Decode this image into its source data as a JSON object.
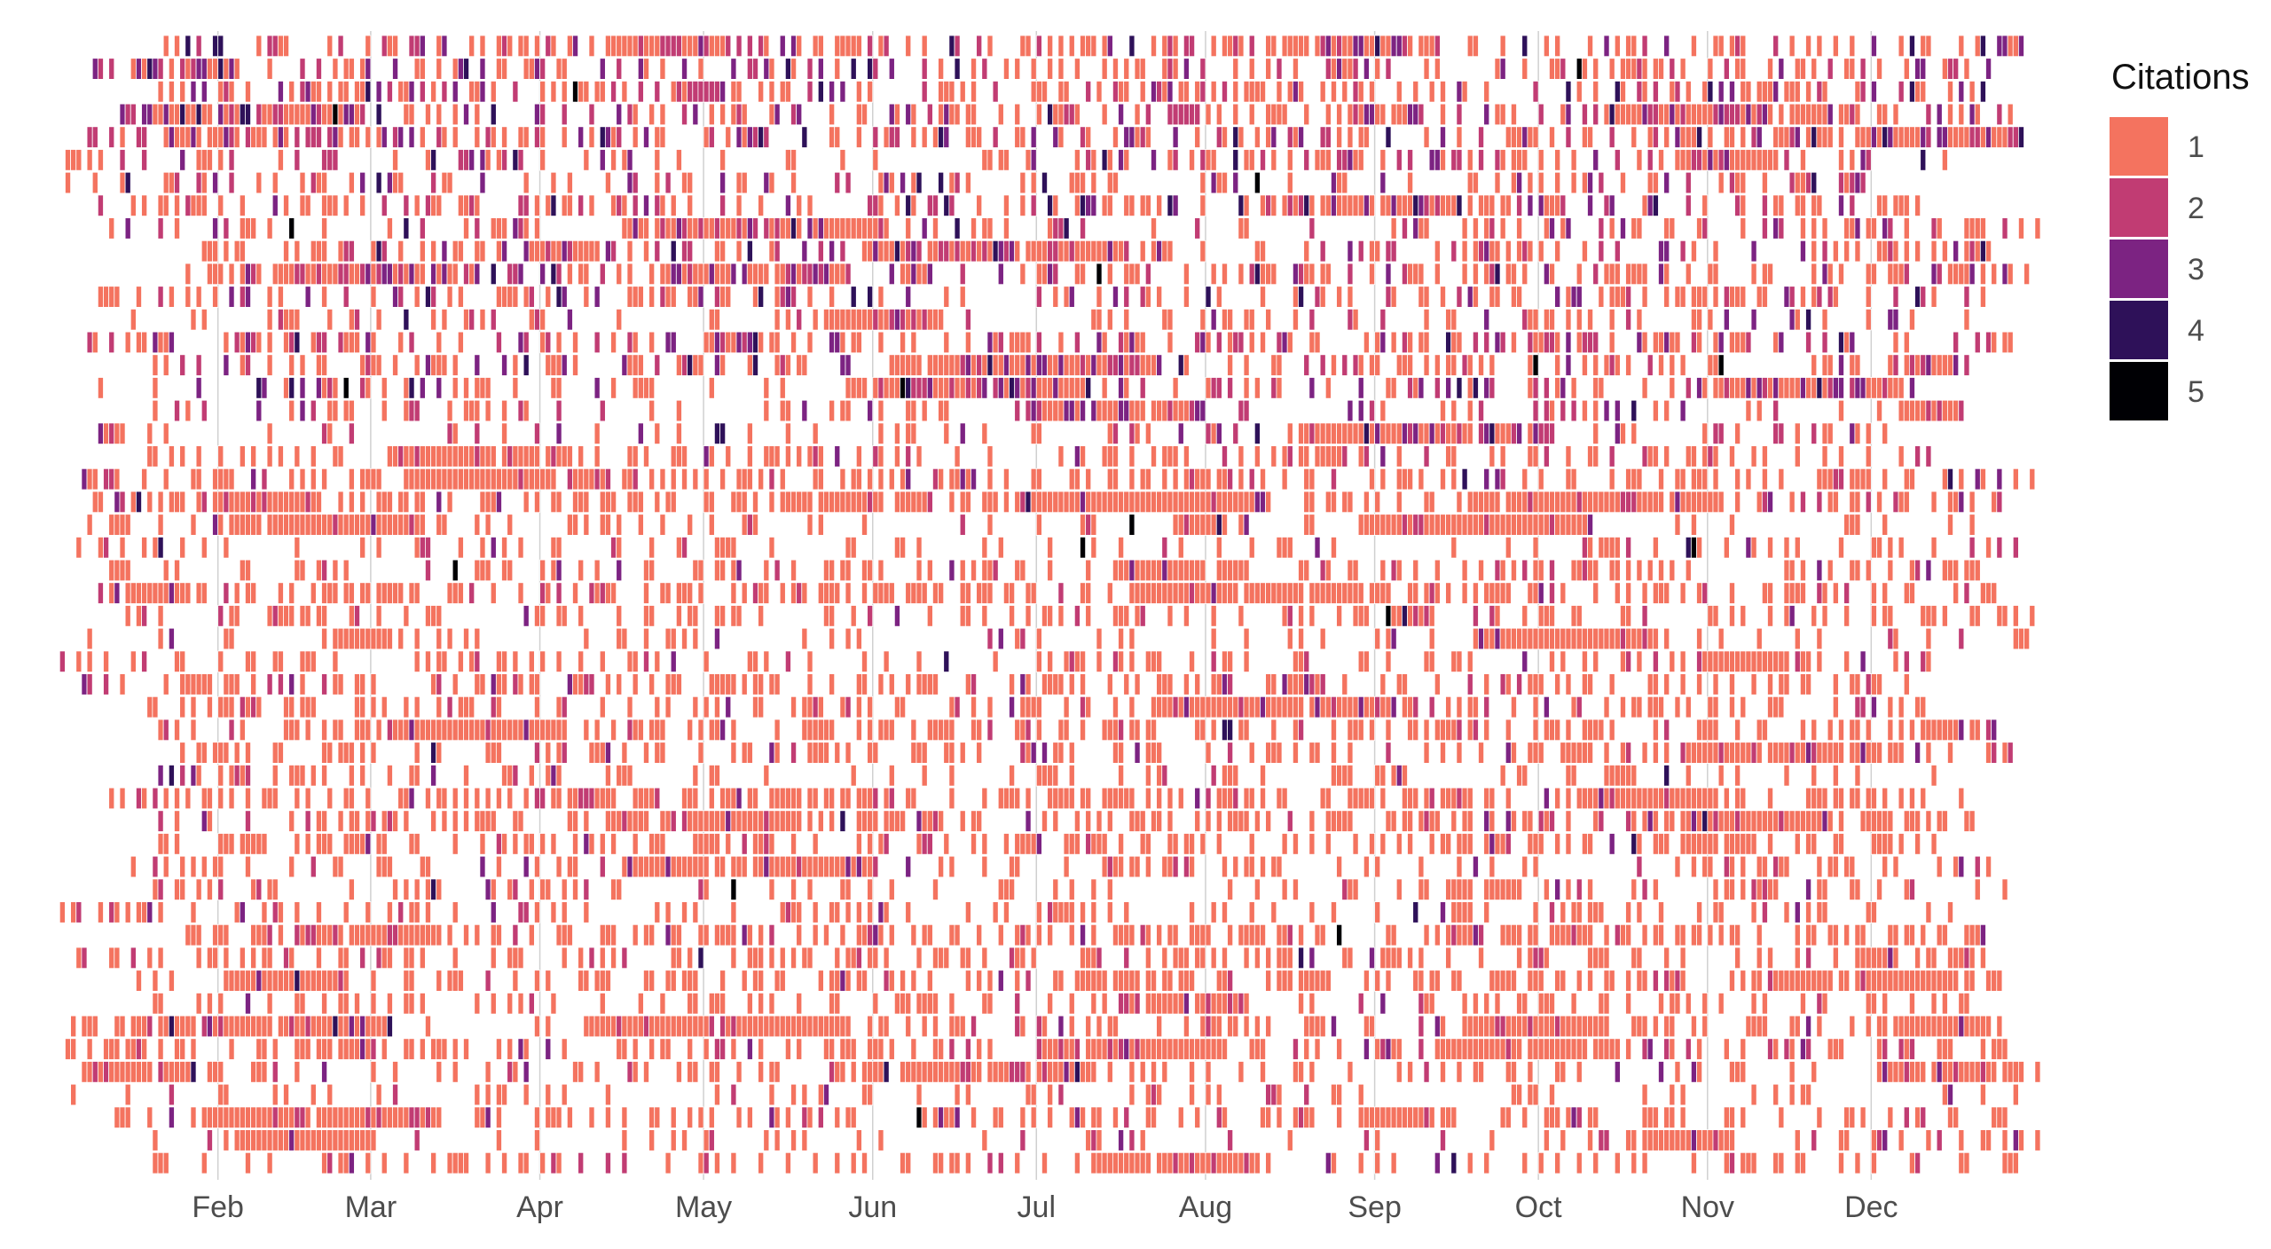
{
  "chart_data": {
    "type": "heatmap",
    "title": "",
    "xlabel": "",
    "ylabel": "",
    "x_tick_labels": [
      "Feb",
      "Mar",
      "Apr",
      "May",
      "Jun",
      "Jul",
      "Aug",
      "Sep",
      "Oct",
      "Nov",
      "Dec"
    ],
    "x_tick_days": [
      32,
      60,
      91,
      121,
      152,
      182,
      213,
      244,
      274,
      305,
      335
    ],
    "x_range_days": [
      1,
      365
    ],
    "row_count": 50,
    "grid": "vertical-only",
    "legend": {
      "title": "Citations",
      "position": "top-right",
      "levels": [
        1,
        2,
        3,
        4,
        5
      ],
      "labels": [
        "1",
        "2",
        "3",
        "4",
        "5"
      ],
      "colors": [
        "#F4735F",
        "#C13C73",
        "#7C2382",
        "#2E1159",
        "#000004"
      ]
    },
    "cell_stroke": "#ffffff",
    "grid_color": "#d0d0d0",
    "seed": 20240117
  }
}
